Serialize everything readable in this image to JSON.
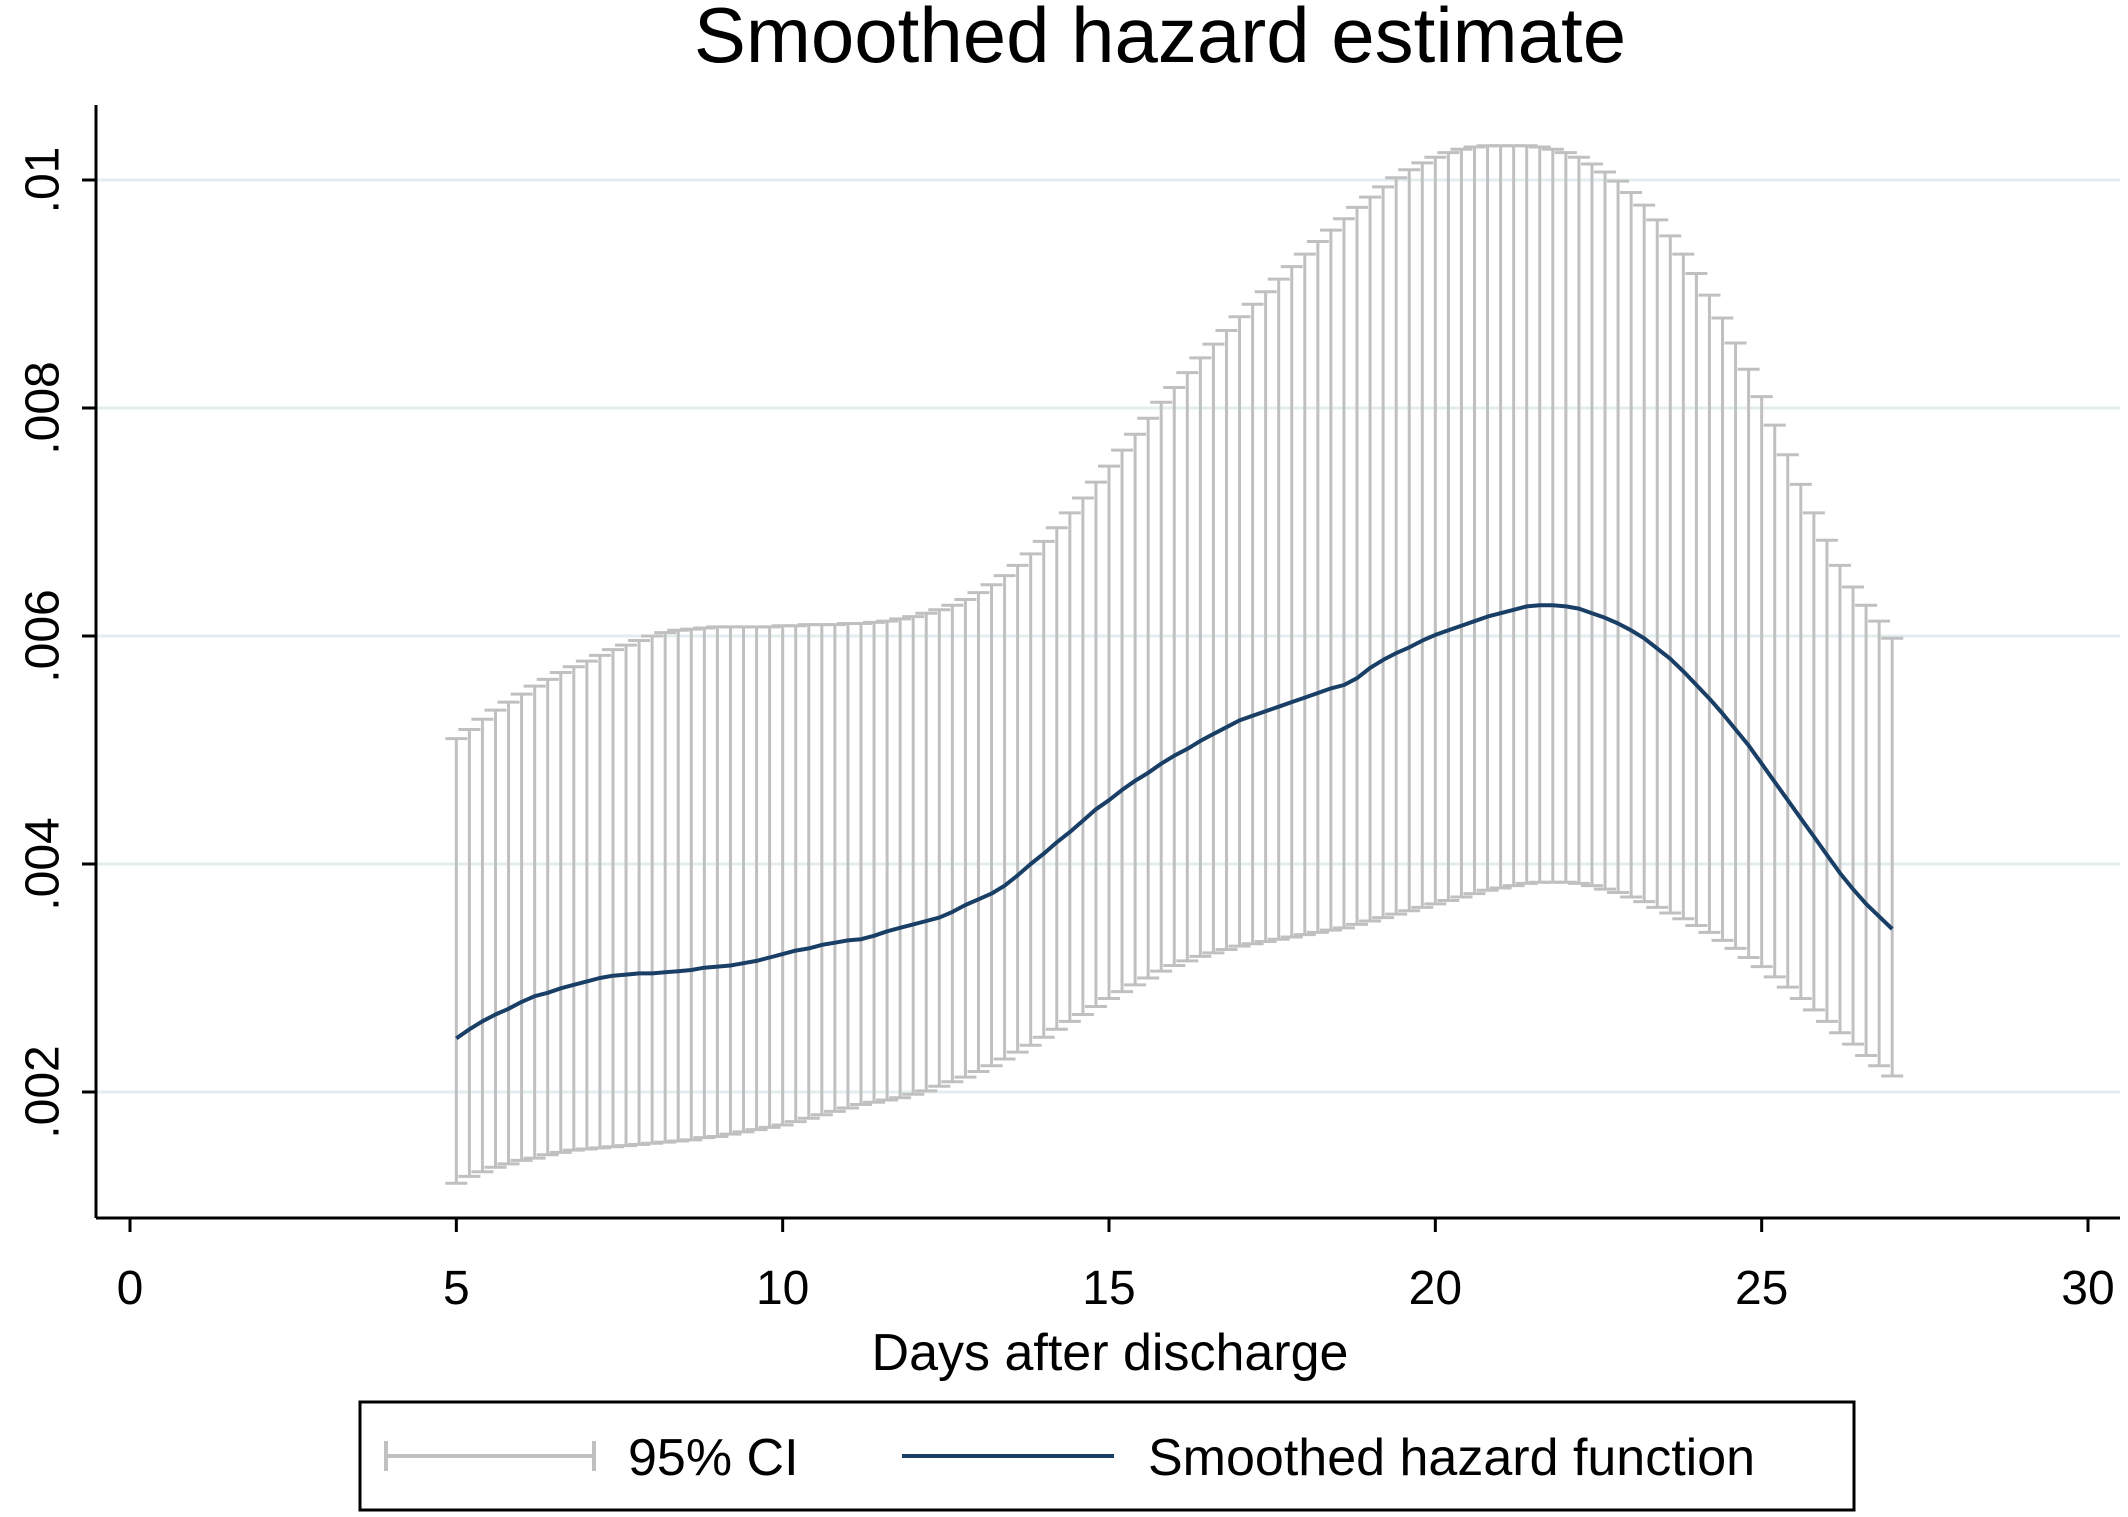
{
  "chart_data": {
    "type": "line",
    "title": "Smoothed hazard estimate",
    "xlabel": "Days after discharge",
    "ylabel": "",
    "xlim": [
      0,
      30
    ],
    "ylim": [
      0.00088,
      0.01065
    ],
    "grid": true,
    "legend_position": "bottom",
    "xticks": [
      0,
      5,
      10,
      15,
      20,
      25,
      30
    ],
    "xtick_labels": [
      "0",
      "5",
      "10",
      "15",
      "20",
      "25",
      "30"
    ],
    "yticks": [
      0.002,
      0.004,
      0.006,
      0.008,
      0.01
    ],
    "ytick_labels": [
      ".002",
      ".004",
      ".006",
      ".008",
      ".01"
    ],
    "colors": {
      "hazard": "#1a3f66",
      "ci": "#c0c0c0",
      "grid": "#e3ecee",
      "axis": "#000000"
    },
    "x": [
      5.0,
      5.2,
      5.4,
      5.6,
      5.8,
      6.0,
      6.2,
      6.4,
      6.6,
      6.8,
      7.0,
      7.2,
      7.4,
      7.6,
      7.8,
      8.0,
      8.2,
      8.4,
      8.6,
      8.8,
      9.0,
      9.2,
      9.4,
      9.6,
      9.8,
      10.0,
      10.2,
      10.4,
      10.6,
      10.8,
      11.0,
      11.2,
      11.4,
      11.6,
      11.8,
      12.0,
      12.2,
      12.4,
      12.6,
      12.8,
      13.0,
      13.2,
      13.4,
      13.6,
      13.8,
      14.0,
      14.2,
      14.4,
      14.6,
      14.8,
      15.0,
      15.2,
      15.4,
      15.6,
      15.8,
      16.0,
      16.2,
      16.4,
      16.6,
      16.8,
      17.0,
      17.2,
      17.4,
      17.6,
      17.8,
      18.0,
      18.2,
      18.4,
      18.6,
      18.8,
      19.0,
      19.2,
      19.4,
      19.6,
      19.8,
      20.0,
      20.2,
      20.4,
      20.6,
      20.8,
      21.0,
      21.2,
      21.4,
      21.6,
      21.8,
      22.0,
      22.2,
      22.4,
      22.6,
      22.8,
      23.0,
      23.2,
      23.4,
      23.6,
      23.8,
      24.0,
      24.2,
      24.4,
      24.6,
      24.8,
      25.0,
      25.2,
      25.4,
      25.6,
      25.8,
      26.0,
      26.2,
      26.4,
      26.6,
      26.8,
      27.0
    ],
    "series": [
      {
        "name": "Smoothed hazard function",
        "values": [
          0.00247,
          0.00255,
          0.00262,
          0.00268,
          0.00273,
          0.00279,
          0.00284,
          0.00287,
          0.00291,
          0.00294,
          0.00297,
          0.003,
          0.00302,
          0.00303,
          0.00304,
          0.00304,
          0.00305,
          0.00306,
          0.00307,
          0.00309,
          0.0031,
          0.00311,
          0.00313,
          0.00315,
          0.00318,
          0.00321,
          0.00324,
          0.00326,
          0.00329,
          0.00331,
          0.00333,
          0.00334,
          0.00337,
          0.00341,
          0.00344,
          0.00347,
          0.0035,
          0.00353,
          0.00358,
          0.00364,
          0.00369,
          0.00374,
          0.00381,
          0.0039,
          0.004,
          0.00409,
          0.00419,
          0.00428,
          0.00438,
          0.00448,
          0.00456,
          0.00465,
          0.00473,
          0.0048,
          0.00488,
          0.00495,
          0.00501,
          0.00508,
          0.00514,
          0.0052,
          0.00526,
          0.0053,
          0.00534,
          0.00538,
          0.00542,
          0.00546,
          0.0055,
          0.00554,
          0.00557,
          0.00563,
          0.00572,
          0.00579,
          0.00585,
          0.0059,
          0.00596,
          0.00601,
          0.00605,
          0.00609,
          0.00613,
          0.00617,
          0.0062,
          0.00623,
          0.00626,
          0.00627,
          0.00627,
          0.00626,
          0.00624,
          0.0062,
          0.00616,
          0.00611,
          0.00605,
          0.00598,
          0.00589,
          0.0058,
          0.00569,
          0.00557,
          0.00545,
          0.00532,
          0.00518,
          0.00504,
          0.00488,
          0.00472,
          0.00456,
          0.0044,
          0.00424,
          0.00408,
          0.00392,
          0.00378,
          0.00365,
          0.00354,
          0.00343
        ]
      },
      {
        "name": "95% CI",
        "lower": [
          0.0012,
          0.00126,
          0.0013,
          0.00134,
          0.00137,
          0.0014,
          0.00142,
          0.00145,
          0.00147,
          0.00149,
          0.0015,
          0.00151,
          0.00152,
          0.00153,
          0.00154,
          0.00155,
          0.00156,
          0.00157,
          0.00158,
          0.0016,
          0.00161,
          0.00163,
          0.00165,
          0.00167,
          0.00169,
          0.00171,
          0.00174,
          0.00177,
          0.0018,
          0.00183,
          0.00186,
          0.00189,
          0.00191,
          0.00193,
          0.00195,
          0.00198,
          0.00201,
          0.00205,
          0.00209,
          0.00213,
          0.00218,
          0.00223,
          0.00229,
          0.00235,
          0.00241,
          0.00248,
          0.00255,
          0.00262,
          0.00268,
          0.00275,
          0.00282,
          0.00288,
          0.00294,
          0.003,
          0.00306,
          0.00311,
          0.00315,
          0.00319,
          0.00322,
          0.00325,
          0.00328,
          0.0033,
          0.00332,
          0.00334,
          0.00336,
          0.00338,
          0.0034,
          0.00342,
          0.00344,
          0.00347,
          0.0035,
          0.00353,
          0.00356,
          0.00359,
          0.00362,
          0.00365,
          0.00368,
          0.00371,
          0.00374,
          0.00377,
          0.00379,
          0.00381,
          0.00383,
          0.00384,
          0.00384,
          0.00384,
          0.00383,
          0.00381,
          0.00378,
          0.00375,
          0.00371,
          0.00367,
          0.00362,
          0.00357,
          0.00352,
          0.00346,
          0.0034,
          0.00333,
          0.00326,
          0.00318,
          0.0031,
          0.00301,
          0.00292,
          0.00282,
          0.00272,
          0.00262,
          0.00252,
          0.00242,
          0.00232,
          0.00223,
          0.00214
        ],
        "upper": [
          0.0051,
          0.00518,
          0.00527,
          0.00535,
          0.00542,
          0.00549,
          0.00556,
          0.00562,
          0.00568,
          0.00573,
          0.00578,
          0.00583,
          0.00588,
          0.00592,
          0.00596,
          0.006,
          0.00603,
          0.00605,
          0.00606,
          0.00607,
          0.00608,
          0.00608,
          0.00608,
          0.00608,
          0.00608,
          0.00609,
          0.00609,
          0.0061,
          0.0061,
          0.0061,
          0.00611,
          0.00611,
          0.00612,
          0.00613,
          0.00615,
          0.00617,
          0.0062,
          0.00623,
          0.00627,
          0.00632,
          0.00638,
          0.00645,
          0.00653,
          0.00662,
          0.00672,
          0.00683,
          0.00695,
          0.00708,
          0.00721,
          0.00735,
          0.00749,
          0.00763,
          0.00777,
          0.00791,
          0.00805,
          0.00818,
          0.00831,
          0.00844,
          0.00856,
          0.00868,
          0.0088,
          0.00891,
          0.00902,
          0.00913,
          0.00924,
          0.00935,
          0.00946,
          0.00956,
          0.00966,
          0.00976,
          0.00985,
          0.00994,
          0.01002,
          0.01009,
          0.01015,
          0.0102,
          0.01024,
          0.01027,
          0.01029,
          0.0103,
          0.0103,
          0.0103,
          0.0103,
          0.01029,
          0.01027,
          0.01024,
          0.0102,
          0.01014,
          0.01007,
          0.00999,
          0.00989,
          0.00978,
          0.00965,
          0.00951,
          0.00935,
          0.00918,
          0.00899,
          0.00879,
          0.00857,
          0.00834,
          0.0081,
          0.00785,
          0.00759,
          0.00733,
          0.00708,
          0.00684,
          0.00662,
          0.00643,
          0.00627,
          0.00613,
          0.00598
        ]
      }
    ]
  },
  "legend": {
    "ci_label": "95% CI",
    "line_label": "Smoothed hazard function"
  }
}
